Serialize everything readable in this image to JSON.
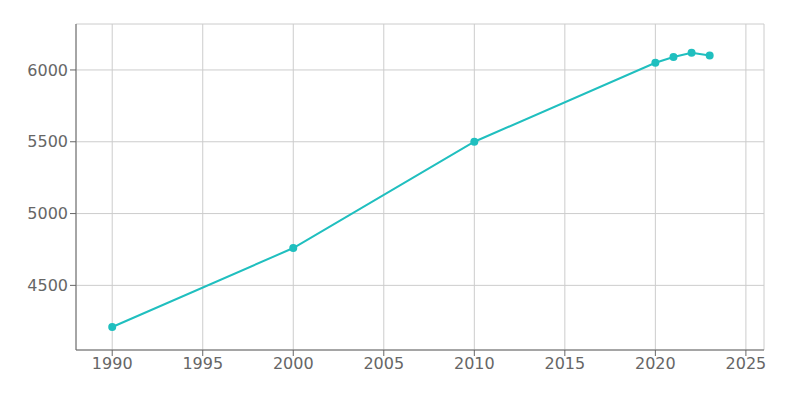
{
  "chart_data": {
    "type": "line",
    "x": [
      1990,
      2000,
      2010,
      2020,
      2021,
      2022,
      2023
    ],
    "values": [
      4210,
      4760,
      5500,
      6050,
      6090,
      6120,
      6100
    ],
    "color": "#20BFBF",
    "marker": "circle",
    "xlim": [
      1988,
      2026
    ],
    "ylim": [
      4050,
      6320
    ],
    "xticks": [
      1990,
      1995,
      2000,
      2005,
      2010,
      2015,
      2020,
      2025
    ],
    "yticks": [
      4500,
      5000,
      5500,
      6000
    ],
    "grid": true
  }
}
